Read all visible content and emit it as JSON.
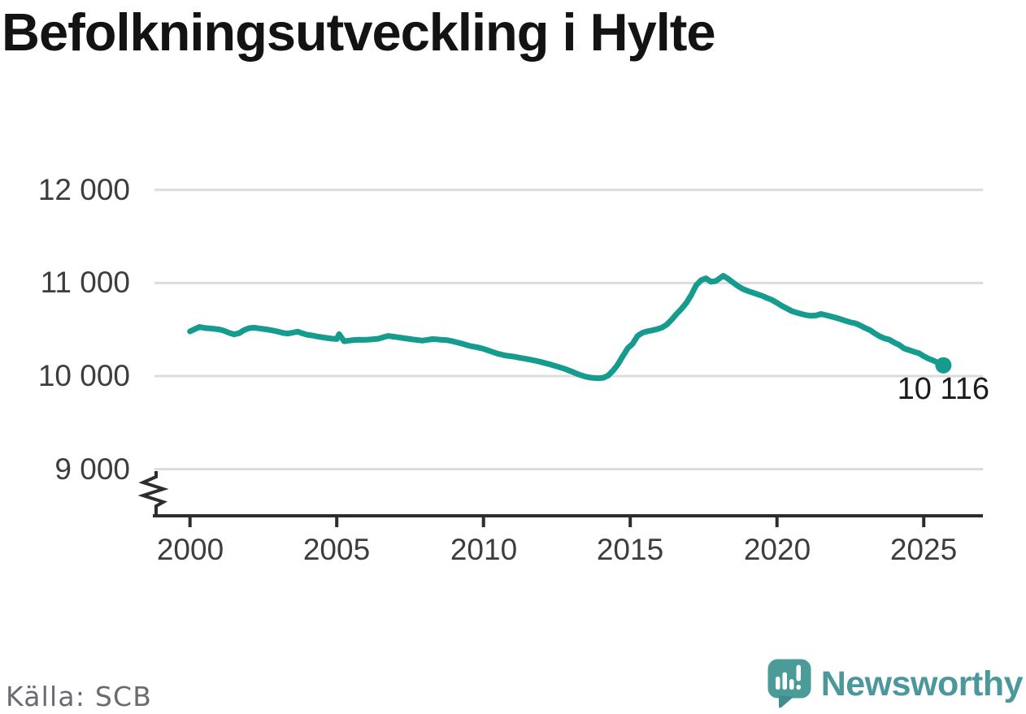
{
  "chart": {
    "title": "Befolkningsutveckling i Hylte"
  },
  "footer": {
    "source": "Källa: SCB",
    "brand": "Newsworthy"
  },
  "chart_data": {
    "type": "line",
    "title": "Befolkningsutveckling i Hylte",
    "xlabel": "",
    "ylabel": "",
    "legend": false,
    "grid": "horizontal",
    "y_axis_break": true,
    "ylim": [
      9000,
      12000
    ],
    "xlim": [
      1998.8,
      2027.0
    ],
    "line_color": "#169b8f",
    "gridline_color": "#dcdcdc",
    "axis_color": "#2d2d2d",
    "end_point": {
      "x": 2025.67,
      "value": 10116,
      "label": "10 116"
    },
    "y_ticks": [
      {
        "label": "12 000",
        "value": 12000
      },
      {
        "label": "11 000",
        "value": 11000
      },
      {
        "label": "10 000",
        "value": 10000
      },
      {
        "label": "9 000",
        "value": 9000
      }
    ],
    "x_ticks": [
      {
        "label": "2000",
        "value": 2000
      },
      {
        "label": "2005",
        "value": 2005
      },
      {
        "label": "2010",
        "value": 2010
      },
      {
        "label": "2015",
        "value": 2015
      },
      {
        "label": "2020",
        "value": 2020
      },
      {
        "label": "2025",
        "value": 2025
      }
    ],
    "series": [
      {
        "color": "#169b8f",
        "points": [
          [
            2000.0,
            10480
          ],
          [
            2000.17,
            10506
          ],
          [
            2000.33,
            10528
          ],
          [
            2000.5,
            10516
          ],
          [
            2000.67,
            10512
          ],
          [
            2000.83,
            10507
          ],
          [
            2001.0,
            10501
          ],
          [
            2001.17,
            10486
          ],
          [
            2001.33,
            10465
          ],
          [
            2001.5,
            10448
          ],
          [
            2001.67,
            10460
          ],
          [
            2001.83,
            10492
          ],
          [
            2002.0,
            10514
          ],
          [
            2002.17,
            10520
          ],
          [
            2002.33,
            10513
          ],
          [
            2002.5,
            10506
          ],
          [
            2002.67,
            10498
          ],
          [
            2002.83,
            10489
          ],
          [
            2003.0,
            10477
          ],
          [
            2003.17,
            10463
          ],
          [
            2003.33,
            10456
          ],
          [
            2003.5,
            10467
          ],
          [
            2003.67,
            10477
          ],
          [
            2003.83,
            10459
          ],
          [
            2004.0,
            10443
          ],
          [
            2004.17,
            10436
          ],
          [
            2004.33,
            10426
          ],
          [
            2004.5,
            10417
          ],
          [
            2004.67,
            10409
          ],
          [
            2004.83,
            10402
          ],
          [
            2005.0,
            10398
          ],
          [
            2005.08,
            10450
          ],
          [
            2005.17,
            10412
          ],
          [
            2005.25,
            10374
          ],
          [
            2005.42,
            10381
          ],
          [
            2005.58,
            10387
          ],
          [
            2005.75,
            10391
          ],
          [
            2005.92,
            10389
          ],
          [
            2006.08,
            10392
          ],
          [
            2006.25,
            10396
          ],
          [
            2006.42,
            10401
          ],
          [
            2006.58,
            10416
          ],
          [
            2006.75,
            10431
          ],
          [
            2006.92,
            10424
          ],
          [
            2007.08,
            10417
          ],
          [
            2007.25,
            10409
          ],
          [
            2007.42,
            10401
          ],
          [
            2007.58,
            10394
          ],
          [
            2007.75,
            10387
          ],
          [
            2007.92,
            10381
          ],
          [
            2008.08,
            10389
          ],
          [
            2008.25,
            10397
          ],
          [
            2008.42,
            10394
          ],
          [
            2008.58,
            10389
          ],
          [
            2008.75,
            10386
          ],
          [
            2008.92,
            10376
          ],
          [
            2009.08,
            10363
          ],
          [
            2009.25,
            10350
          ],
          [
            2009.42,
            10334
          ],
          [
            2009.58,
            10321
          ],
          [
            2009.75,
            10311
          ],
          [
            2009.92,
            10299
          ],
          [
            2010.08,
            10284
          ],
          [
            2010.25,
            10266
          ],
          [
            2010.42,
            10247
          ],
          [
            2010.58,
            10234
          ],
          [
            2010.75,
            10221
          ],
          [
            2010.92,
            10214
          ],
          [
            2011.08,
            10207
          ],
          [
            2011.25,
            10195
          ],
          [
            2011.42,
            10187
          ],
          [
            2011.58,
            10177
          ],
          [
            2011.75,
            10167
          ],
          [
            2011.92,
            10154
          ],
          [
            2012.08,
            10141
          ],
          [
            2012.25,
            10127
          ],
          [
            2012.42,
            10111
          ],
          [
            2012.58,
            10097
          ],
          [
            2012.75,
            10079
          ],
          [
            2012.92,
            10059
          ],
          [
            2013.08,
            10039
          ],
          [
            2013.25,
            10017
          ],
          [
            2013.42,
            9999
          ],
          [
            2013.58,
            9987
          ],
          [
            2013.75,
            9980
          ],
          [
            2013.92,
            9977
          ],
          [
            2014.08,
            9982
          ],
          [
            2014.25,
            10006
          ],
          [
            2014.42,
            10061
          ],
          [
            2014.58,
            10126
          ],
          [
            2014.75,
            10216
          ],
          [
            2014.92,
            10301
          ],
          [
            2015.08,
            10346
          ],
          [
            2015.25,
            10431
          ],
          [
            2015.42,
            10466
          ],
          [
            2015.58,
            10481
          ],
          [
            2015.75,
            10491
          ],
          [
            2015.92,
            10504
          ],
          [
            2016.08,
            10521
          ],
          [
            2016.25,
            10554
          ],
          [
            2016.42,
            10609
          ],
          [
            2016.58,
            10667
          ],
          [
            2016.75,
            10724
          ],
          [
            2016.92,
            10789
          ],
          [
            2017.08,
            10871
          ],
          [
            2017.25,
            10976
          ],
          [
            2017.42,
            11031
          ],
          [
            2017.58,
            11049
          ],
          [
            2017.75,
            11013
          ],
          [
            2017.92,
            11021
          ],
          [
            2018.08,
            11057
          ],
          [
            2018.17,
            11077
          ],
          [
            2018.33,
            11046
          ],
          [
            2018.5,
            11006
          ],
          [
            2018.67,
            10967
          ],
          [
            2018.83,
            10937
          ],
          [
            2019.0,
            10914
          ],
          [
            2019.17,
            10897
          ],
          [
            2019.33,
            10879
          ],
          [
            2019.5,
            10861
          ],
          [
            2019.67,
            10837
          ],
          [
            2019.83,
            10817
          ],
          [
            2020.0,
            10787
          ],
          [
            2020.17,
            10754
          ],
          [
            2020.33,
            10727
          ],
          [
            2020.5,
            10699
          ],
          [
            2020.67,
            10681
          ],
          [
            2020.83,
            10667
          ],
          [
            2021.0,
            10654
          ],
          [
            2021.17,
            10647
          ],
          [
            2021.33,
            10651
          ],
          [
            2021.5,
            10667
          ],
          [
            2021.67,
            10654
          ],
          [
            2021.83,
            10641
          ],
          [
            2022.0,
            10627
          ],
          [
            2022.17,
            10611
          ],
          [
            2022.33,
            10594
          ],
          [
            2022.5,
            10577
          ],
          [
            2022.67,
            10567
          ],
          [
            2022.83,
            10544
          ],
          [
            2023.0,
            10517
          ],
          [
            2023.17,
            10494
          ],
          [
            2023.33,
            10459
          ],
          [
            2023.5,
            10427
          ],
          [
            2023.67,
            10404
          ],
          [
            2023.83,
            10391
          ],
          [
            2024.0,
            10359
          ],
          [
            2024.17,
            10334
          ],
          [
            2024.33,
            10297
          ],
          [
            2024.5,
            10279
          ],
          [
            2024.67,
            10261
          ],
          [
            2024.83,
            10247
          ],
          [
            2025.0,
            10214
          ],
          [
            2025.17,
            10187
          ],
          [
            2025.33,
            10167
          ],
          [
            2025.5,
            10141
          ],
          [
            2025.67,
            10116
          ]
        ]
      }
    ]
  }
}
